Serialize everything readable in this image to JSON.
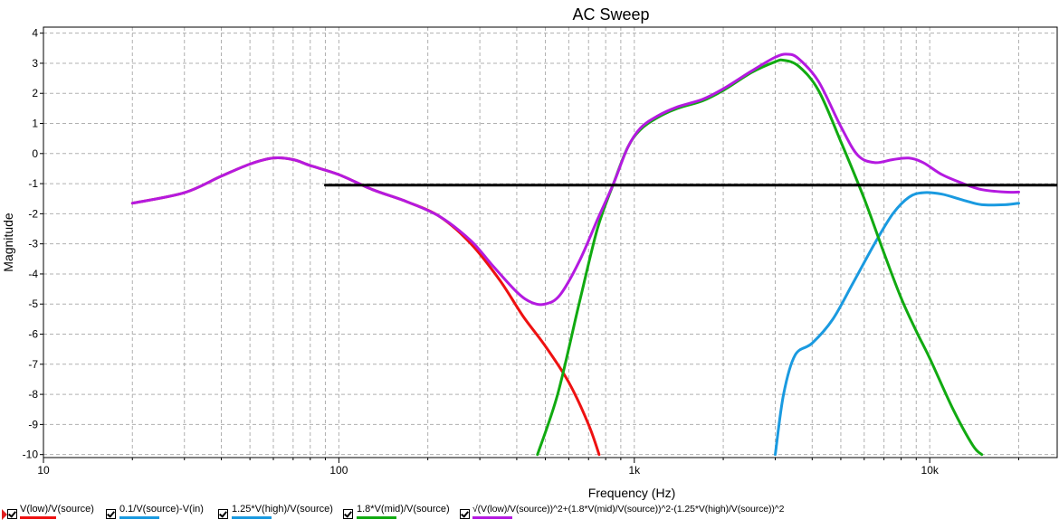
{
  "chart_data": {
    "type": "line",
    "title": "AC Sweep",
    "xlabel": "Frequency (Hz)",
    "ylabel": "Magnitude",
    "xscale": "log",
    "xlim": [
      10,
      27000
    ],
    "ylim": [
      -10.1,
      4.2
    ],
    "grid": true,
    "x_tick_labels": [
      {
        "value": 10,
        "label": "10"
      },
      {
        "value": 100,
        "label": "100"
      },
      {
        "value": 1000,
        "label": "1k"
      },
      {
        "value": 10000,
        "label": "10k"
      }
    ],
    "y_ticks": [
      4,
      3,
      2,
      1,
      0,
      -1,
      -2,
      -3,
      -4,
      -5,
      -6,
      -7,
      -8,
      -9,
      -10
    ],
    "series": [
      {
        "name": "V(low)/V(source)",
        "color": "#ee1111",
        "points": [
          [
            20,
            -1.65
          ],
          [
            30,
            -1.3
          ],
          [
            40,
            -0.75
          ],
          [
            50,
            -0.35
          ],
          [
            60,
            -0.15
          ],
          [
            70,
            -0.2
          ],
          [
            80,
            -0.4
          ],
          [
            100,
            -0.7
          ],
          [
            130,
            -1.2
          ],
          [
            170,
            -1.6
          ],
          [
            220,
            -2.1
          ],
          [
            280,
            -3.0
          ],
          [
            350,
            -4.2
          ],
          [
            420,
            -5.4
          ],
          [
            500,
            -6.4
          ],
          [
            600,
            -7.6
          ],
          [
            700,
            -9.0
          ],
          [
            760,
            -10.0
          ]
        ]
      },
      {
        "name": "0.1/V(source)-V(in)",
        "color": "#1a9ae0",
        "points": []
      },
      {
        "name": "1.25*V(high)/V(source)",
        "color": "#1a9ae0",
        "points": [
          [
            3000,
            -10.0
          ],
          [
            3200,
            -8.0
          ],
          [
            3500,
            -6.7
          ],
          [
            4000,
            -6.3
          ],
          [
            4700,
            -5.5
          ],
          [
            5500,
            -4.3
          ],
          [
            6500,
            -3.0
          ],
          [
            7500,
            -2.0
          ],
          [
            8500,
            -1.45
          ],
          [
            9500,
            -1.3
          ],
          [
            11000,
            -1.35
          ],
          [
            13000,
            -1.55
          ],
          [
            15000,
            -1.7
          ],
          [
            18000,
            -1.7
          ],
          [
            20000,
            -1.65
          ]
        ]
      },
      {
        "name": "1.8*V(mid)/V(source)",
        "color": "#11aa11",
        "points": [
          [
            470,
            -10.0
          ],
          [
            550,
            -8.0
          ],
          [
            650,
            -5.0
          ],
          [
            750,
            -2.5
          ],
          [
            850,
            -1.0
          ],
          [
            950,
            0.2
          ],
          [
            1050,
            0.8
          ],
          [
            1200,
            1.2
          ],
          [
            1400,
            1.5
          ],
          [
            1700,
            1.75
          ],
          [
            2000,
            2.1
          ],
          [
            2500,
            2.7
          ],
          [
            3000,
            3.05
          ],
          [
            3200,
            3.1
          ],
          [
            3600,
            2.9
          ],
          [
            4200,
            2.1
          ],
          [
            5000,
            0.4
          ],
          [
            6000,
            -1.5
          ],
          [
            7000,
            -3.3
          ],
          [
            8000,
            -4.8
          ],
          [
            9000,
            -5.9
          ],
          [
            10000,
            -6.8
          ],
          [
            12000,
            -8.5
          ],
          [
            14000,
            -9.7
          ],
          [
            15000,
            -10.0
          ]
        ]
      },
      {
        "name": "√(V(low)/V(source))^2+(1.8*V(mid)/V(source))^2-(1.25*V(high)/V(source))^2",
        "color": "#b41ae0",
        "points": [
          [
            20,
            -1.65
          ],
          [
            30,
            -1.3
          ],
          [
            40,
            -0.75
          ],
          [
            50,
            -0.35
          ],
          [
            60,
            -0.15
          ],
          [
            70,
            -0.2
          ],
          [
            80,
            -0.4
          ],
          [
            100,
            -0.7
          ],
          [
            130,
            -1.2
          ],
          [
            170,
            -1.6
          ],
          [
            220,
            -2.1
          ],
          [
            280,
            -2.9
          ],
          [
            330,
            -3.7
          ],
          [
            400,
            -4.6
          ],
          [
            450,
            -4.95
          ],
          [
            500,
            -5.0
          ],
          [
            560,
            -4.7
          ],
          [
            650,
            -3.6
          ],
          [
            750,
            -2.2
          ],
          [
            850,
            -1.0
          ],
          [
            950,
            0.2
          ],
          [
            1050,
            0.85
          ],
          [
            1200,
            1.25
          ],
          [
            1400,
            1.55
          ],
          [
            1700,
            1.8
          ],
          [
            2000,
            2.15
          ],
          [
            2500,
            2.75
          ],
          [
            3000,
            3.2
          ],
          [
            3300,
            3.3
          ],
          [
            3600,
            3.15
          ],
          [
            4200,
            2.4
          ],
          [
            5000,
            0.9
          ],
          [
            5700,
            -0.05
          ],
          [
            6500,
            -0.3
          ],
          [
            7500,
            -0.2
          ],
          [
            8500,
            -0.15
          ],
          [
            9500,
            -0.3
          ],
          [
            11000,
            -0.7
          ],
          [
            13000,
            -1.0
          ],
          [
            15000,
            -1.2
          ],
          [
            18000,
            -1.28
          ],
          [
            20000,
            -1.28
          ]
        ]
      },
      {
        "name": "",
        "color": "#000000",
        "points": [
          [
            90,
            -1.05
          ],
          [
            27000,
            -1.05
          ]
        ]
      }
    ]
  },
  "legend": [
    {
      "label": "V(low)/V(source)",
      "color": "#ee1111"
    },
    {
      "label": "0.1/V(source)-V(in)",
      "color": "#1a9ae0"
    },
    {
      "label": "1.25*V(high)/V(source)",
      "color": "#1a9ae0"
    },
    {
      "label": "1.8*V(mid)/V(source)",
      "color": "#11aa11"
    },
    {
      "label": "√(V(low)/V(source))^2+(1.8*V(mid)/V(source))^2-(1.25*V(high)/V(source))^2",
      "color": "#b41ae0"
    }
  ]
}
